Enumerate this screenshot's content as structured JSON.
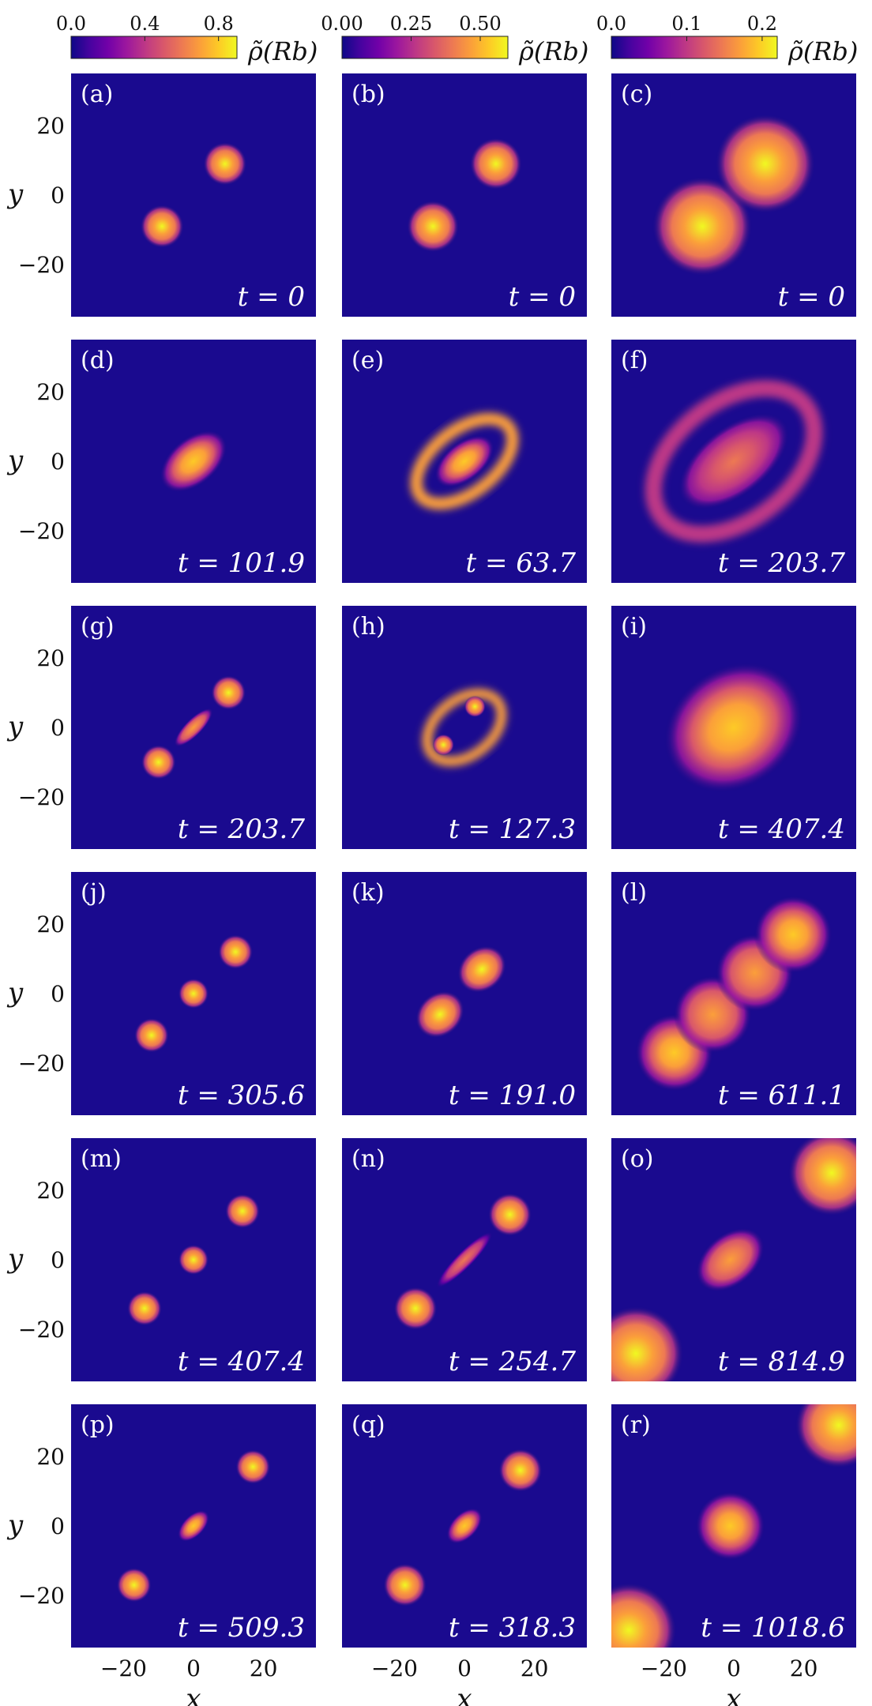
{
  "chart_data": {
    "type": "heatmap",
    "colorbars": [
      {
        "label": "ρ̃(Rb)",
        "range": [
          0,
          0.9
        ],
        "ticks": [
          0.0,
          0.4,
          0.8
        ],
        "tick_labels": [
          "0.0",
          "0.4",
          "0.8"
        ]
      },
      {
        "label": "ρ̃(Rb)",
        "range": [
          0,
          0.6
        ],
        "ticks": [
          0.0,
          0.25,
          0.5
        ],
        "tick_labels": [
          "0.00",
          "0.25",
          "0.50"
        ]
      },
      {
        "label": "ρ̃(Rb)",
        "range": [
          0,
          0.22
        ],
        "ticks": [
          0.0,
          0.1,
          0.2
        ],
        "tick_labels": [
          "0.0",
          "0.1",
          "0.2"
        ]
      }
    ],
    "xlabel": "x",
    "ylabel": "y",
    "xlim": [
      -35,
      35
    ],
    "ylim": [
      -35,
      35
    ],
    "xticks": [
      -20,
      0,
      20
    ],
    "yticks": [
      20,
      0,
      -20
    ],
    "xtick_labels": [
      "−20",
      "0",
      "20"
    ],
    "ytick_labels": [
      "20",
      "0",
      "−20"
    ],
    "colormap": [
      "#0d0887",
      "#46039f",
      "#7201a8",
      "#9c179e",
      "#bd3786",
      "#d8576b",
      "#ed7953",
      "#fb9f3a",
      "#fdca26",
      "#f0f921"
    ],
    "background_color": "#1a0a8f",
    "panels": [
      {
        "label": "(a)",
        "time": "t = 0",
        "blobs": [
          {
            "x": -9,
            "y": -9,
            "r": 5,
            "peak": 1
          },
          {
            "x": 9,
            "y": 9,
            "r": 5,
            "peak": 1
          }
        ]
      },
      {
        "label": "(b)",
        "time": "t = 0",
        "blobs": [
          {
            "x": -9,
            "y": -9,
            "r": 6,
            "peak": 1
          },
          {
            "x": 9,
            "y": 9,
            "r": 6,
            "peak": 1
          }
        ]
      },
      {
        "label": "(c)",
        "time": "t = 0",
        "blobs": [
          {
            "x": -9,
            "y": -9,
            "r": 11.5,
            "peak": 1
          },
          {
            "x": 9,
            "y": 9,
            "r": 11.5,
            "peak": 1
          }
        ]
      },
      {
        "label": "(d)",
        "time": "t = 101.9",
        "blobs": [
          {
            "x": 0,
            "y": 0,
            "r": 6,
            "rx": 9,
            "ry": 5.5,
            "rot": -40,
            "peak": 0.95
          }
        ]
      },
      {
        "label": "(e)",
        "time": "t = 63.7",
        "rings": [
          {
            "rx": 16,
            "ry": 9,
            "rot": -38,
            "w": 2.2,
            "peak": 0.85
          }
        ],
        "blobs": [
          {
            "x": 0,
            "y": 0,
            "rx": 8,
            "ry": 4.5,
            "rot": -38,
            "peak": 0.9
          }
        ]
      },
      {
        "label": "(f)",
        "time": "t = 203.7",
        "rings": [
          {
            "rx": 26,
            "ry": 17,
            "rot": -38,
            "w": 3,
            "peak": 0.55
          }
        ],
        "blobs": [
          {
            "x": 0,
            "y": 0,
            "rx": 15,
            "ry": 8,
            "rot": -38,
            "peak": 0.75
          }
        ]
      },
      {
        "label": "(g)",
        "time": "t = 203.7",
        "blobs": [
          {
            "x": -10,
            "y": -10,
            "r": 4,
            "peak": 1
          },
          {
            "x": 10,
            "y": 10,
            "r": 4,
            "peak": 1
          },
          {
            "x": 0,
            "y": 0,
            "rx": 6,
            "ry": 2,
            "rot": -45,
            "peak": 0.85
          }
        ]
      },
      {
        "label": "(h)",
        "time": "t = 127.3",
        "rings": [
          {
            "rx": 12,
            "ry": 8,
            "rot": -38,
            "w": 1.8,
            "peak": 0.85
          }
        ],
        "blobs": [
          {
            "x": -6,
            "y": -5,
            "r": 2.5,
            "peak": 1
          },
          {
            "x": 3,
            "y": 6,
            "r": 2.5,
            "peak": 1
          }
        ]
      },
      {
        "label": "(i)",
        "time": "t = 407.4",
        "blobs": [
          {
            "x": 0,
            "y": 0,
            "rx": 17,
            "ry": 14,
            "rot": -35,
            "peak": 0.95
          }
        ]
      },
      {
        "label": "(j)",
        "time": "t = 305.6",
        "blobs": [
          {
            "x": -12,
            "y": -12,
            "r": 4,
            "peak": 1
          },
          {
            "x": 0,
            "y": 0,
            "r": 3.5,
            "peak": 1
          },
          {
            "x": 12,
            "y": 12,
            "r": 4,
            "peak": 1
          }
        ]
      },
      {
        "label": "(k)",
        "time": "t = 191.0",
        "blobs": [
          {
            "x": -7,
            "y": -6,
            "rx": 6,
            "ry": 5,
            "rot": -40,
            "peak": 1
          },
          {
            "x": 5,
            "y": 7,
            "rx": 6,
            "ry": 5,
            "rot": -40,
            "peak": 1
          }
        ]
      },
      {
        "label": "(l)",
        "time": "t = 611.1",
        "blobs": [
          {
            "x": -17,
            "y": -17,
            "r": 9,
            "peak": 0.9
          },
          {
            "x": -6,
            "y": -6,
            "r": 9,
            "peak": 0.8
          },
          {
            "x": 6,
            "y": 6,
            "r": 9,
            "peak": 0.8
          },
          {
            "x": 17,
            "y": 17,
            "r": 9,
            "peak": 0.9
          }
        ]
      },
      {
        "label": "(m)",
        "time": "t = 407.4",
        "blobs": [
          {
            "x": -14,
            "y": -14,
            "r": 4,
            "peak": 1
          },
          {
            "x": 0,
            "y": 0,
            "r": 3.5,
            "peak": 1
          },
          {
            "x": 14,
            "y": 14,
            "r": 4,
            "peak": 1
          }
        ]
      },
      {
        "label": "(n)",
        "time": "t = 254.7",
        "blobs": [
          {
            "x": -14,
            "y": -14,
            "r": 5,
            "peak": 1
          },
          {
            "x": 13,
            "y": 13,
            "r": 5,
            "peak": 1
          },
          {
            "x": 0,
            "y": 0,
            "rx": 9,
            "ry": 2,
            "rot": -45,
            "peak": 0.7
          }
        ]
      },
      {
        "label": "(o)",
        "time": "t = 814.9",
        "blobs": [
          {
            "x": -28,
            "y": -27,
            "r": 11,
            "peak": 1
          },
          {
            "x": 28,
            "y": 25,
            "r": 10,
            "peak": 1
          },
          {
            "x": -1,
            "y": 0,
            "rx": 9,
            "ry": 6,
            "rot": -40,
            "peak": 0.85
          }
        ]
      },
      {
        "label": "(p)",
        "time": "t = 509.3",
        "blobs": [
          {
            "x": -17,
            "y": -17,
            "r": 4,
            "peak": 1
          },
          {
            "x": 17,
            "y": 17,
            "r": 4,
            "peak": 1
          },
          {
            "x": 0,
            "y": 0,
            "rx": 4.5,
            "ry": 2.5,
            "rot": -45,
            "peak": 0.9
          }
        ]
      },
      {
        "label": "(q)",
        "time": "t = 318.3",
        "blobs": [
          {
            "x": -17,
            "y": -17,
            "r": 5,
            "peak": 1
          },
          {
            "x": 16,
            "y": 16,
            "r": 5,
            "peak": 1
          },
          {
            "x": 0,
            "y": 0,
            "rx": 5,
            "ry": 3,
            "rot": -45,
            "peak": 0.9
          }
        ]
      },
      {
        "label": "(r)",
        "time": "t = 1018.6",
        "blobs": [
          {
            "x": -30,
            "y": -30,
            "r": 11,
            "peak": 1
          },
          {
            "x": 30,
            "y": 29,
            "r": 10,
            "peak": 1
          },
          {
            "x": -1,
            "y": 0,
            "r": 8,
            "peak": 0.9
          }
        ]
      }
    ]
  }
}
